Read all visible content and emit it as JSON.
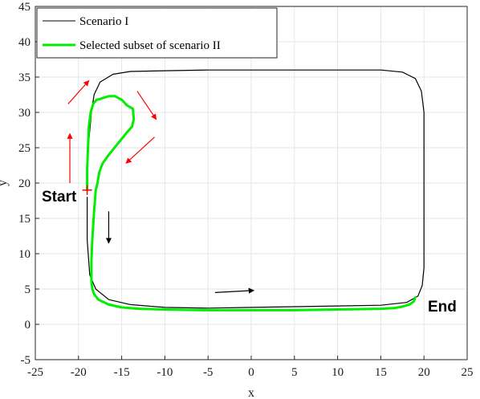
{
  "chart_data": {
    "type": "line",
    "title": "",
    "xlabel": "x",
    "ylabel": "y",
    "xlim": [
      -25,
      25
    ],
    "ylim": [
      -5,
      45
    ],
    "x_ticks": [
      -25,
      -20,
      -15,
      -10,
      -5,
      0,
      5,
      10,
      15,
      20,
      25
    ],
    "y_ticks": [
      -5,
      0,
      5,
      10,
      15,
      20,
      25,
      30,
      35,
      40,
      45
    ],
    "grid": true,
    "legend_position": "top-left",
    "series": [
      {
        "name": "Scenario I",
        "color": "#000000",
        "x": [
          -19.0,
          -18.8,
          -18.5,
          -18.2,
          -17.5,
          -16.0,
          -14.0,
          -10.0,
          -5.0,
          0.0,
          5.0,
          10.0,
          15.0,
          17.5,
          19.0,
          19.7,
          20.0,
          20.0,
          20.0,
          20.0,
          19.8,
          19.3,
          18.0,
          15.0,
          10.0,
          5.0,
          0.0,
          -5.0,
          -10.0,
          -14.0,
          -16.5,
          -18.0,
          -18.7,
          -19.0,
          -19.0
        ],
        "y": [
          22.0,
          26.0,
          30.0,
          32.5,
          34.3,
          35.4,
          35.8,
          35.9,
          36.0,
          36.0,
          36.0,
          36.0,
          36.0,
          35.7,
          34.8,
          33.0,
          30.0,
          25.0,
          15.0,
          8.0,
          5.5,
          4.0,
          3.1,
          2.7,
          2.6,
          2.5,
          2.4,
          2.3,
          2.4,
          2.8,
          3.5,
          5.0,
          7.0,
          12.0,
          18.0
        ]
      },
      {
        "name": "Selected subset of scenario II",
        "color": "#00ee00",
        "x": [
          -19.0,
          -19.0,
          -18.9,
          -18.8,
          -18.6,
          -18.3,
          -17.9,
          -17.5,
          -17.3,
          -17.0,
          -16.5,
          -15.8,
          -15.0,
          -14.4,
          -13.7,
          -13.6,
          -13.8,
          -14.5,
          -15.5,
          -16.5,
          -17.2,
          -17.6,
          -17.8,
          -18.0,
          -18.2,
          -18.4,
          -18.5,
          -18.5,
          -18.4,
          -18.2,
          -17.7,
          -16.5,
          -15.0,
          -13.0,
          -10.0,
          -5.0,
          0.0,
          5.0,
          10.0,
          15.0,
          16.5,
          17.5,
          18.3,
          18.8,
          19.0
        ],
        "y": [
          19.0,
          22.0,
          25.0,
          28.0,
          30.0,
          31.2,
          31.8,
          31.9,
          32.0,
          32.1,
          32.3,
          32.3,
          31.8,
          31.0,
          30.5,
          29.0,
          28.0,
          27.0,
          25.5,
          24.0,
          22.8,
          21.5,
          20.0,
          19.0,
          16.0,
          12.0,
          9.0,
          6.0,
          5.0,
          4.3,
          3.5,
          2.8,
          2.4,
          2.2,
          2.1,
          2.0,
          2.0,
          2.0,
          2.1,
          2.2,
          2.3,
          2.5,
          2.8,
          3.2,
          3.8
        ]
      }
    ],
    "annotations": {
      "start_label": "Start",
      "end_label": "End",
      "start_marker_color": "#ff0000",
      "arrows": [
        {
          "color": "#ff0000",
          "from": [
            -21.0,
            20.0
          ],
          "to": [
            -21.0,
            27.0
          ]
        },
        {
          "color": "#ff0000",
          "from": [
            -21.2,
            31.2
          ],
          "to": [
            -18.8,
            34.5
          ]
        },
        {
          "color": "#ff0000",
          "from": [
            -13.2,
            33.0
          ],
          "to": [
            -11.0,
            29.0
          ]
        },
        {
          "color": "#ff0000",
          "from": [
            -11.2,
            26.5
          ],
          "to": [
            -14.5,
            22.8
          ]
        },
        {
          "color": "#000000",
          "from": [
            -16.5,
            16.0
          ],
          "to": [
            -16.5,
            11.5
          ]
        },
        {
          "color": "#000000",
          "from": [
            -4.2,
            4.5
          ],
          "to": [
            0.3,
            4.8
          ]
        }
      ]
    }
  }
}
